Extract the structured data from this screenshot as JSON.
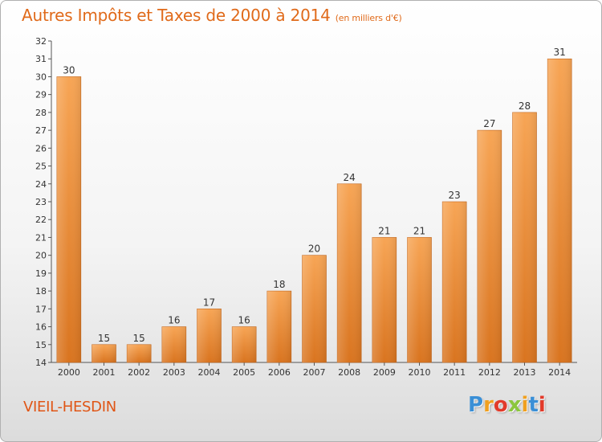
{
  "header": {
    "title": "Autres Impôts et Taxes de 2000 à 2014",
    "unit": "(en milliers d'€)"
  },
  "footer": {
    "place": "VIEIL-HESDIN",
    "logo_letters": [
      "P",
      "r",
      "o",
      "x",
      "i",
      "t",
      "i"
    ],
    "logo_colors": [
      "#3a8fd6",
      "#f0a020",
      "#e23a2a",
      "#8cc63e",
      "#f0a020",
      "#3a8fd6",
      "#e23a2a"
    ]
  },
  "colors": {
    "bar_light": "#f7a555",
    "bar_dark": "#d9741f",
    "title": "#e06a1a",
    "place": "#e05515"
  },
  "chart_data": {
    "type": "bar",
    "title": "Autres Impôts et Taxes de 2000 à 2014",
    "categories": [
      "2000",
      "2001",
      "2002",
      "2003",
      "2004",
      "2005",
      "2006",
      "2007",
      "2008",
      "2009",
      "2010",
      "2011",
      "2012",
      "2013",
      "2014"
    ],
    "values": [
      30,
      15,
      15,
      16,
      17,
      16,
      18,
      20,
      24,
      21,
      21,
      23,
      27,
      28,
      31
    ],
    "ylim": [
      14,
      32
    ],
    "yticks": [
      14,
      15,
      16,
      17,
      18,
      19,
      20,
      21,
      22,
      23,
      24,
      25,
      26,
      27,
      28,
      29,
      30,
      31,
      32
    ],
    "grid": false,
    "data_labels": true
  }
}
